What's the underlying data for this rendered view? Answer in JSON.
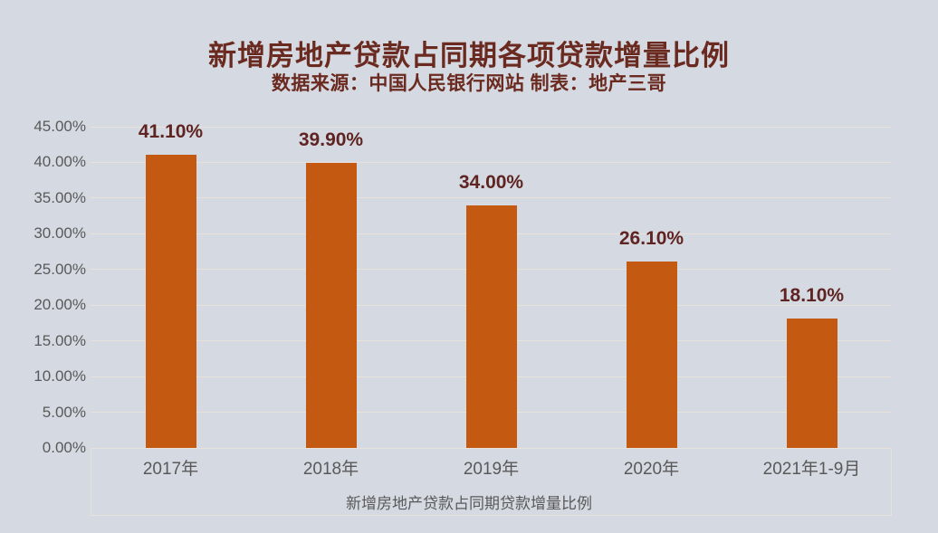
{
  "chart_data": {
    "type": "bar",
    "title": "新增房地产贷款占同期各项贷款增量比例",
    "subtitle": "数据来源：中国人民银行网站  制表：地产三哥",
    "legend": "新增房地产贷款占同期贷款增量比例",
    "legend_position": "bottom",
    "categories": [
      "2017年",
      "2018年",
      "2019年",
      "2020年",
      "2021年1-9月"
    ],
    "values": [
      41.1,
      39.9,
      34.0,
      26.1,
      18.1
    ],
    "data_labels": [
      "41.10%",
      "39.90%",
      "34.00%",
      "26.10%",
      "18.10%"
    ],
    "ylabel": "",
    "xlabel": "",
    "ylim": [
      0,
      45
    ],
    "ytick_step": 5,
    "yticks": [
      "0.00%",
      "5.00%",
      "10.00%",
      "15.00%",
      "20.00%",
      "25.00%",
      "30.00%",
      "35.00%",
      "40.00%",
      "45.00%"
    ],
    "grid": true,
    "colors": {
      "background": "#D5DAE2",
      "bar": "#C45A12",
      "title_text": "#6B2A20",
      "value_label_text": "#5F2421",
      "axis_text": "#595959",
      "gridline": "#E8E2DA"
    }
  }
}
